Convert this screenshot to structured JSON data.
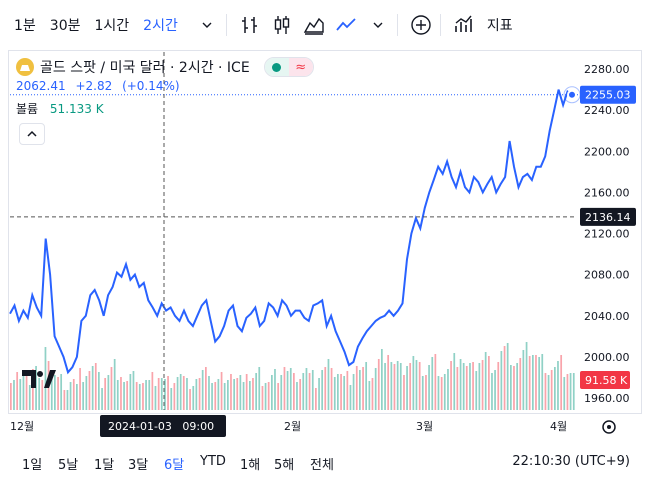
{
  "toolbar": {
    "intervals": [
      {
        "label": "1분",
        "active": false
      },
      {
        "label": "30분",
        "active": false
      },
      {
        "label": "1시간",
        "active": false
      },
      {
        "label": "2시간",
        "active": true
      }
    ],
    "indicators_label": "지표"
  },
  "legend": {
    "symbol": "골드 스팟 / 미국 달러 · 2시간 · ICE",
    "price": "2062.41",
    "change": "+2.82",
    "change_pct": "(+0.14%)",
    "volume_label": "볼륨",
    "volume_value": "51.133 K"
  },
  "price_axis": {
    "ticks": [
      "2280.00",
      "2240.00",
      "2200.00",
      "2160.00",
      "2120.00",
      "2080.00",
      "2040.00",
      "2000.00",
      "1960.00"
    ],
    "last_price": "2255.03",
    "crosshair_price": "2136.14",
    "volume_tag": "91.58 K"
  },
  "time_axis": {
    "labels": [
      "12월",
      "2월",
      "3월",
      "4월"
    ],
    "crosshair_time": "2024-01-03   09:00"
  },
  "ranges": [
    {
      "label": "1일",
      "active": false
    },
    {
      "label": "5날",
      "active": false
    },
    {
      "label": "1달",
      "active": false
    },
    {
      "label": "3달",
      "active": false
    },
    {
      "label": "6달",
      "active": true
    },
    {
      "label": "YTD",
      "active": false
    },
    {
      "label": "1해",
      "active": false
    },
    {
      "label": "5해",
      "active": false
    },
    {
      "label": "전체",
      "active": false
    }
  ],
  "clock": "22:10:30 (UTC+9)",
  "colors": {
    "line": "#2962ff",
    "up": "#089981",
    "down": "#f23645",
    "crosshair": "#131722"
  },
  "chart_data": {
    "type": "line",
    "title": "골드 스팟 / 미국 달러 · 2시간 · ICE",
    "xlabel": "",
    "ylabel": "",
    "ylim": [
      1960,
      2280
    ],
    "x_months": [
      "12월",
      "2월",
      "3월",
      "4월"
    ],
    "price_path": [
      2042,
      2050,
      2035,
      2045,
      2038,
      2060,
      2048,
      2040,
      2115,
      2080,
      2020,
      2010,
      2000,
      1985,
      1990,
      2000,
      2035,
      2040,
      2060,
      2065,
      2055,
      2040,
      2060,
      2068,
      2082,
      2078,
      2090,
      2075,
      2080,
      2068,
      2072,
      2055,
      2048,
      2040,
      2052,
      2045,
      2048,
      2040,
      2035,
      2045,
      2035,
      2030,
      2040,
      2050,
      2055,
      2035,
      2015,
      2020,
      2030,
      2045,
      2050,
      2030,
      2025,
      2038,
      2042,
      2048,
      2030,
      2035,
      2052,
      2048,
      2040,
      2055,
      2050,
      2040,
      2045,
      2045,
      2038,
      2035,
      2050,
      2052,
      2055,
      2030,
      2040,
      2025,
      2015,
      2005,
      1992,
      1995,
      2010,
      2018,
      2025,
      2030,
      2035,
      2038,
      2040,
      2045,
      2040,
      2045,
      2052,
      2095,
      2120,
      2135,
      2125,
      2145,
      2160,
      2172,
      2185,
      2178,
      2190,
      2175,
      2165,
      2180,
      2165,
      2160,
      2175,
      2170,
      2160,
      2168,
      2175,
      2160,
      2168,
      2175,
      2210,
      2185,
      2165,
      2175,
      2178,
      2172,
      2185,
      2185,
      2195,
      2220,
      2240,
      2260,
      2245,
      2258,
      2255
    ],
    "volume_profile": [
      35,
      40,
      30,
      28,
      32,
      45,
      30,
      25,
      55,
      40,
      35,
      30,
      28,
      25,
      30,
      22,
      35,
      38,
      40,
      42,
      30,
      28,
      35,
      40,
      45,
      38,
      30,
      28,
      32,
      35,
      30,
      28,
      25,
      30,
      35,
      32,
      28,
      30,
      32,
      35,
      30,
      25,
      28,
      32,
      30,
      35,
      40,
      30,
      28,
      32,
      35,
      38,
      30,
      28,
      35,
      40,
      30,
      32,
      35,
      30,
      28,
      32,
      35,
      40,
      45,
      38,
      30,
      35,
      38,
      40,
      32,
      28,
      35,
      40,
      45,
      50,
      38,
      35,
      30,
      32,
      40,
      45,
      38,
      40,
      35,
      42,
      48,
      55,
      60,
      50,
      45,
      40,
      42,
      48,
      52,
      45,
      40,
      38,
      45,
      50,
      42,
      38,
      40,
      45,
      50,
      55,
      48,
      42,
      40,
      45,
      50,
      55,
      48,
      45,
      50,
      58,
      60,
      52,
      48,
      50,
      55,
      60,
      58,
      55,
      50,
      45,
      40,
      42,
      45,
      48,
      40,
      38,
      35
    ]
  }
}
